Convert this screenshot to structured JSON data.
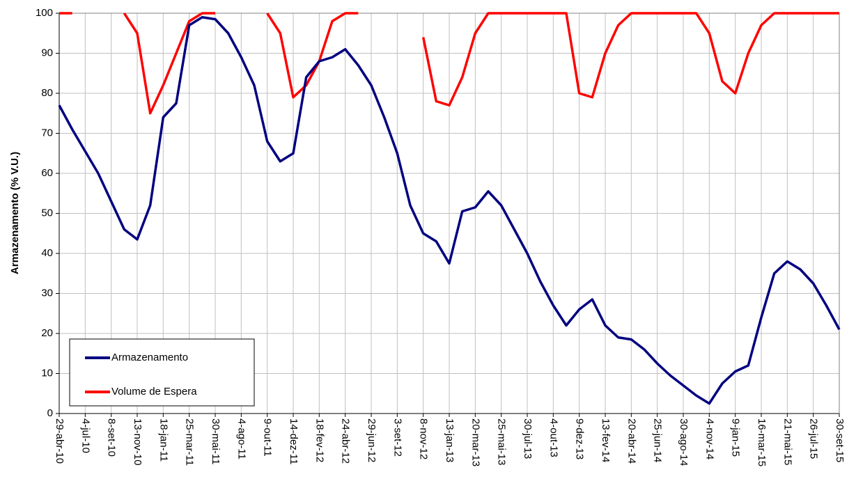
{
  "chart_data": {
    "type": "line",
    "y_label": "Armazenamento (% V.U.)",
    "categories": [
      "29-abr-10",
      null,
      "4-jul-10",
      null,
      "8-set-10",
      null,
      "13-nov-10",
      null,
      "18-jan-11",
      null,
      "25-mar-11",
      null,
      "30-mai-11",
      null,
      "4-ago-11",
      null,
      "9-out-11",
      null,
      "14-dez-11",
      null,
      "18-fev-12",
      null,
      "24-abr-12",
      null,
      "29-jun-12",
      null,
      "3-set-12",
      null,
      "8-nov-12",
      null,
      "13-jan-13",
      null,
      "20-mar-13",
      null,
      "25-mai-13",
      null,
      "30-jul-13",
      null,
      "4-out-13",
      null,
      "9-dez-13",
      null,
      "13-fev-14",
      null,
      "20-abr-14",
      null,
      "25-jun-14",
      null,
      "30-ago-14",
      null,
      "4-nov-14",
      null,
      "9-jan-15",
      null,
      "16-mar-15",
      null,
      "21-mai-15",
      null,
      "26-jul-15",
      null,
      "30-set-15"
    ],
    "series": [
      {
        "name": "Armazenamento",
        "color": "#000080",
        "values": [
          77,
          71,
          65.5,
          60,
          53,
          46,
          43.5,
          52,
          74,
          77.5,
          97,
          99,
          98.5,
          95,
          89,
          82,
          68,
          63,
          65,
          84,
          88,
          89,
          91,
          87,
          82,
          74,
          65,
          52,
          45,
          43,
          37.5,
          50.5,
          51.5,
          55.5,
          52,
          46,
          40,
          33,
          27,
          22,
          26,
          28.5,
          22,
          19,
          18.5,
          16,
          12.5,
          9.5,
          7,
          4.5,
          2.5,
          7.5,
          10.5,
          12,
          24,
          35,
          38,
          36,
          32.5,
          27,
          21
        ]
      },
      {
        "name": "Volume de Espera",
        "color": "#ff0000",
        "values": [
          100,
          100,
          null,
          null,
          null,
          100,
          95,
          75,
          82,
          90,
          98,
          100,
          100,
          null,
          null,
          null,
          100,
          95,
          79,
          82,
          88,
          98,
          100,
          100,
          null,
          null,
          null,
          null,
          94,
          78,
          77,
          84,
          95,
          100,
          100,
          100,
          100,
          100,
          100,
          100,
          80,
          79,
          90,
          97,
          100,
          100,
          100,
          100,
          100,
          100,
          95,
          83,
          80,
          90,
          97,
          100,
          100,
          100,
          100,
          100,
          100
        ]
      }
    ],
    "ylim": [
      0,
      100
    ],
    "yticks": [
      0,
      10,
      20,
      30,
      40,
      50,
      60,
      70,
      80,
      90,
      100
    ],
    "grid": true,
    "legend": "lower-left"
  }
}
